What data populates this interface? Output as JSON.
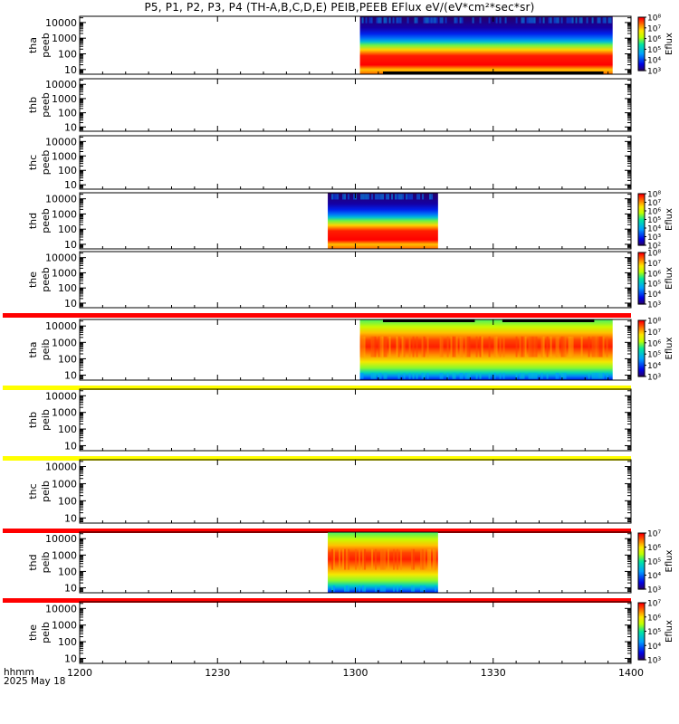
{
  "title": "P5, P1, P2, P3, P4 (TH-A,B,C,D,E) PEIB,PEEB EFlux eV/(eV*cm²*sec*sr)",
  "corner_labels": [
    "hhmm",
    "2025 May 18"
  ],
  "chart_data": {
    "type": "heatmap",
    "title": "P5, P1, P2, P3, P4 (TH-A,B,C,D,E) PEIB,PEEB EFlux eV/(eV*cm²*sec*sr)",
    "x_ticks": [
      "1200",
      "1230",
      "1300",
      "1330",
      "1400"
    ],
    "x_range_minutes": [
      0,
      120
    ],
    "x_tick_minutes": [
      0,
      30,
      60,
      90,
      120
    ],
    "y_scale": "log",
    "y_ticks": [
      "10",
      "100",
      "1000",
      "10000"
    ],
    "y_range_eV": [
      5,
      25000
    ],
    "colorbar_label": "Eflux",
    "panels": [
      {
        "ylabel": [
          "tha",
          "peeb"
        ],
        "data_minutes": [
          61,
          116
        ],
        "kind": "electron",
        "colorbar": {
          "exp_min": 3,
          "exp_max": 8,
          "ticks": [
            "10⁸",
            "10⁷",
            "10⁶",
            "10⁵",
            "10⁴",
            "10³"
          ]
        },
        "ticks_top": [],
        "bar_below": null,
        "black_bottom": [
          [
            66,
            114
          ]
        ]
      },
      {
        "ylabel": [
          "thb",
          "peeb"
        ],
        "data_minutes": null,
        "kind": "none",
        "colorbar": null,
        "bar_below": null
      },
      {
        "ylabel": [
          "thc",
          "peeb"
        ],
        "data_minutes": null,
        "kind": "none",
        "colorbar": null,
        "bar_below": null
      },
      {
        "ylabel": [
          "thd",
          "peeb"
        ],
        "data_minutes": [
          54,
          78
        ],
        "kind": "electron",
        "colorbar": {
          "exp_min": 2,
          "exp_max": 8,
          "ticks": [
            "10⁸",
            "10⁷",
            "10⁶",
            "10⁵",
            "10⁴",
            "10³",
            "10²"
          ]
        },
        "bar_below": null
      },
      {
        "ylabel": [
          "the",
          "peeb"
        ],
        "data_minutes": null,
        "kind": "none",
        "colorbar": {
          "exp_min": 3,
          "exp_max": 8,
          "ticks": [
            "10⁸",
            "10⁷",
            "10⁶",
            "10⁵",
            "10⁴",
            "10³"
          ]
        },
        "bar_below": "#ff0000"
      },
      {
        "ylabel": [
          "tha",
          "peib"
        ],
        "data_minutes": [
          61,
          116
        ],
        "kind": "ion",
        "colorbar": {
          "exp_min": 3,
          "exp_max": 8,
          "ticks": [
            "10⁸",
            "10⁷",
            "10⁶",
            "10⁵",
            "10⁴",
            "10³"
          ]
        },
        "bar_below": "#ffff00",
        "black_top": [
          [
            66,
            86
          ],
          [
            92,
            112
          ]
        ]
      },
      {
        "ylabel": [
          "thb",
          "peib"
        ],
        "data_minutes": null,
        "kind": "none",
        "colorbar": null,
        "bar_below": "#ffff00"
      },
      {
        "ylabel": [
          "thc",
          "peib"
        ],
        "data_minutes": null,
        "kind": "none",
        "colorbar": null,
        "bar_below": "#ff0000"
      },
      {
        "ylabel": [
          "thd",
          "peib"
        ],
        "data_minutes": [
          54,
          78
        ],
        "kind": "ion",
        "colorbar": {
          "exp_min": 3,
          "exp_max": 7,
          "ticks": [
            "10⁷",
            "10⁶",
            "10⁵",
            "10⁴",
            "10³"
          ]
        },
        "bar_below": "#ff0000"
      },
      {
        "ylabel": [
          "the",
          "peib"
        ],
        "data_minutes": null,
        "kind": "none",
        "colorbar": {
          "exp_min": 3,
          "exp_max": 7,
          "ticks": [
            "10⁷",
            "10⁶",
            "10⁵",
            "10⁴",
            "10³"
          ]
        },
        "bar_below": null
      }
    ]
  }
}
